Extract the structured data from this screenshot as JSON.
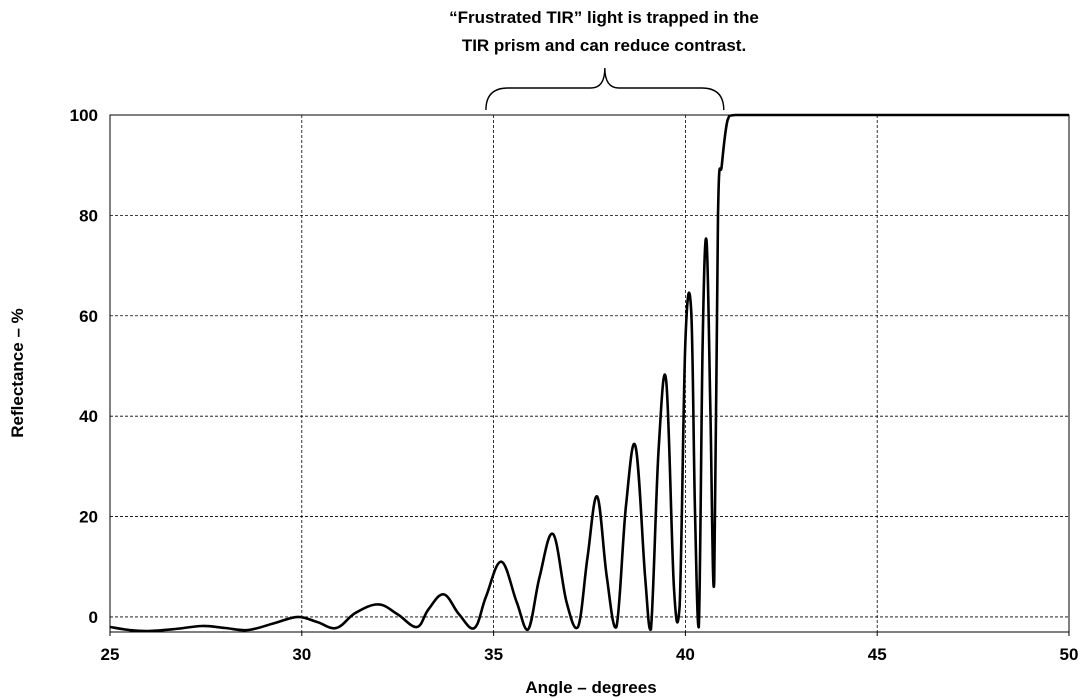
{
  "chart_data": {
    "type": "line",
    "title": "",
    "xlabel": "Angle – degrees",
    "ylabel": "Reflectance – %",
    "xlim": [
      25,
      50
    ],
    "ylim": [
      -3,
      100
    ],
    "xticks": [
      25,
      30,
      35,
      40,
      45,
      50
    ],
    "yticks": [
      0,
      20,
      40,
      60,
      80,
      100
    ],
    "xtick_labels": [
      "25",
      "30",
      "35",
      "40",
      "45",
      "50"
    ],
    "ytick_labels": [
      "0",
      "20",
      "40",
      "60",
      "80",
      "100"
    ],
    "grid": true,
    "annotation": {
      "lines": [
        "“Frustrated TIR” light is trapped in the",
        "TIR prism and can reduce contrast."
      ],
      "x_range": [
        34.8,
        41.0
      ]
    },
    "series": [
      {
        "x": [
          25.0,
          25.5,
          26.0,
          26.7,
          27.4,
          28.0,
          28.6,
          29.3,
          29.9,
          30.4,
          30.9,
          31.4,
          32.0,
          32.5,
          33.0,
          33.3,
          33.7,
          34.1,
          34.5,
          34.8,
          35.2,
          35.6,
          35.9,
          36.2,
          36.55,
          36.9,
          37.2,
          37.45,
          37.7,
          37.95,
          38.2,
          38.45,
          38.7,
          38.95,
          39.1,
          39.3,
          39.5,
          39.7,
          39.85,
          40.0,
          40.15,
          40.25,
          40.35,
          40.45,
          40.55,
          40.65,
          40.75,
          40.85,
          40.95,
          41.1,
          41.3,
          50.0
        ],
        "y": [
          -2.0,
          -2.6,
          -2.8,
          -2.4,
          -1.8,
          -2.2,
          -2.6,
          -1.2,
          0.0,
          -1.0,
          -2.2,
          0.8,
          2.5,
          0.5,
          -2.0,
          1.5,
          4.5,
          0.5,
          -2.2,
          4.0,
          11.0,
          3.0,
          -2.5,
          8.0,
          16.5,
          3.0,
          -2.0,
          12.0,
          24.0,
          8.0,
          -2.0,
          22.0,
          34.0,
          8.0,
          -2.5,
          33.0,
          47.0,
          6.0,
          2.0,
          55.0,
          61.0,
          21.0,
          -2.0,
          55.0,
          75.0,
          42.0,
          7.0,
          80.0,
          90.0,
          99.0,
          100.0,
          100.0
        ]
      }
    ]
  }
}
